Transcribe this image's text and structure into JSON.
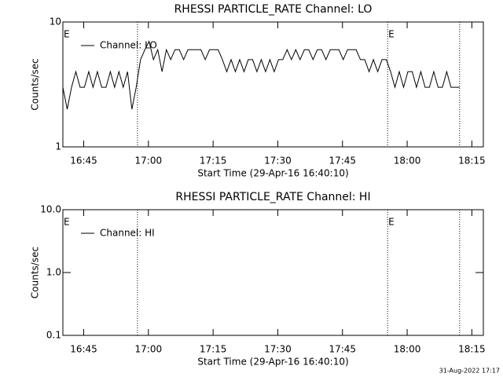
{
  "chart_data": [
    {
      "type": "line",
      "title": "RHESSI PARTICLE_RATE Channel: LO",
      "xlabel": "Start Time (29-Apr-16 16:40:10)",
      "ylabel": "Counts/sec",
      "x": [
        0,
        1,
        2,
        3,
        4,
        5,
        6,
        7,
        8,
        9,
        10,
        11,
        12,
        13,
        14,
        15,
        16,
        17,
        18,
        19,
        20,
        21,
        22,
        23,
        24,
        25,
        26,
        27,
        28,
        29,
        30,
        31,
        32,
        33,
        34,
        35,
        36,
        37,
        38,
        39,
        40,
        41,
        42,
        43,
        44,
        45,
        46,
        47,
        48,
        49,
        50,
        51,
        52,
        53,
        54,
        55,
        56,
        57,
        58,
        59,
        60,
        61,
        62,
        63,
        64,
        65,
        66,
        67,
        68,
        69,
        70,
        71,
        72,
        73,
        74,
        75,
        76,
        77,
        78,
        79,
        80,
        81,
        82,
        83,
        84,
        85,
        86,
        87,
        88,
        89,
        90,
        91,
        92
      ],
      "series": [
        {
          "name": "Channel: LO",
          "color": "#000000",
          "values": [
            3,
            2,
            3,
            4,
            3,
            3,
            4,
            3,
            4,
            3,
            3,
            4,
            3,
            4,
            3,
            4,
            2,
            3,
            5,
            6,
            7,
            5,
            6,
            4,
            6,
            5,
            6,
            6,
            5,
            6,
            6,
            6,
            6,
            5,
            6,
            6,
            6,
            5,
            4,
            5,
            4,
            5,
            4,
            5,
            5,
            4,
            5,
            4,
            5,
            4,
            5,
            5,
            6,
            5,
            6,
            5,
            6,
            6,
            5,
            6,
            6,
            5,
            6,
            6,
            6,
            5,
            6,
            6,
            6,
            5,
            5,
            4,
            5,
            4,
            5,
            5,
            4,
            3,
            4,
            3,
            4,
            4,
            3,
            4,
            3,
            3,
            4,
            3,
            3,
            4,
            3,
            3,
            3
          ]
        }
      ],
      "xlim": [
        0,
        97.5
      ],
      "xticks": [
        {
          "value": 4.833,
          "label": "16:45"
        },
        {
          "value": 19.833,
          "label": "17:00"
        },
        {
          "value": 34.833,
          "label": "17:15"
        },
        {
          "value": 49.833,
          "label": "17:30"
        },
        {
          "value": 64.833,
          "label": "17:45"
        },
        {
          "value": 79.833,
          "label": "18:00"
        },
        {
          "value": 94.833,
          "label": "18:15"
        }
      ],
      "ylim": [
        1,
        10
      ],
      "yticks": [
        1,
        10
      ],
      "log_y": true,
      "legend": "upper left",
      "vlines": [
        17.3,
        75.3,
        92.0
      ],
      "annotations": [
        {
          "text": "E",
          "x": 0
        },
        {
          "text": "E",
          "x": 75.3
        }
      ]
    },
    {
      "type": "line",
      "title": "RHESSI PARTICLE_RATE Channel: HI",
      "xlabel": "Start Time (29-Apr-16 16:40:10)",
      "ylabel": "Counts/sec",
      "x": [],
      "series": [
        {
          "name": "Channel: HI",
          "color": "#000000",
          "values": []
        }
      ],
      "xlim": [
        0,
        97.5
      ],
      "xticks": [
        {
          "value": 4.833,
          "label": "16:45"
        },
        {
          "value": 19.833,
          "label": "17:00"
        },
        {
          "value": 34.833,
          "label": "17:15"
        },
        {
          "value": 49.833,
          "label": "17:30"
        },
        {
          "value": 64.833,
          "label": "17:45"
        },
        {
          "value": 79.833,
          "label": "18:00"
        },
        {
          "value": 94.833,
          "label": "18:15"
        }
      ],
      "ylim": [
        0.1,
        10
      ],
      "yticks": [
        0.1,
        {
          "value": 1,
          "label": "1.0"
        },
        {
          "value": 10,
          "label": "10.0"
        }
      ],
      "log_y": true,
      "legend": "upper left",
      "vlines": [
        17.3,
        75.3,
        92.0
      ],
      "annotations": [
        {
          "text": "E",
          "x": 0
        },
        {
          "text": "E",
          "x": 75.3
        }
      ]
    }
  ],
  "footer": "31-Aug-2022 17:17"
}
